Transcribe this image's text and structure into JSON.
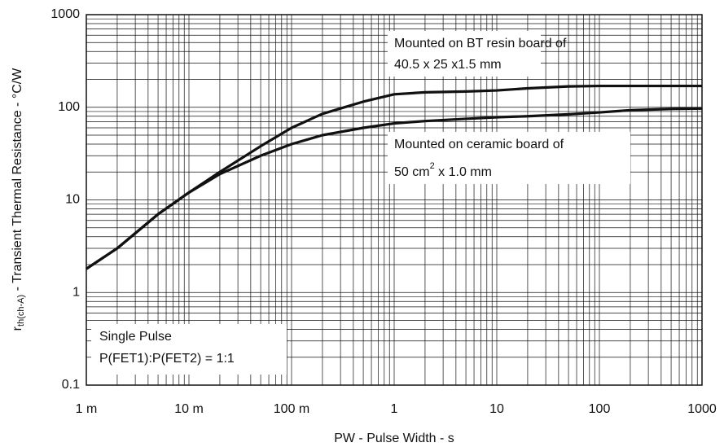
{
  "chart_data": {
    "type": "line",
    "xscale": "log",
    "yscale": "log",
    "grid": true,
    "x_label": "PW - Pulse Width - s",
    "y_label": [
      "r",
      "th(ch-A)",
      " - Transient Thermal Resistance - °C/W"
    ],
    "annotations": [
      "Mounted on BT resin board of",
      "40.5 x 25 x1.5 mm",
      "Mounted on ceramic board of",
      "50 cm",
      "2",
      " x 1.0 mm",
      "Single Pulse",
      "P(FET1):P(FET2) = 1:1"
    ],
    "x": [
      0.001,
      0.002,
      0.005,
      0.01,
      0.02,
      0.05,
      0.1,
      0.2,
      0.5,
      1,
      2,
      5,
      10,
      20,
      50,
      100,
      200,
      500,
      1000
    ],
    "series": [
      {
        "color": "#111111",
        "values": [
          1.8,
          3,
          7,
          12,
          20,
          38,
          60,
          85,
          115,
          138,
          145,
          148,
          152,
          160,
          168,
          170,
          170,
          170,
          170
        ]
      },
      {
        "color": "#111111",
        "values": [
          1.8,
          3,
          7,
          12,
          19,
          30,
          40,
          50,
          60,
          67,
          71,
          75,
          78,
          80,
          84,
          88,
          93,
          96,
          97
        ]
      }
    ],
    "xlim": [
      0.001,
      1000
    ],
    "xticks": [
      {
        "value": 0.001,
        "label": "1 m"
      },
      {
        "value": 0.01,
        "label": "10 m"
      },
      {
        "value": 0.1,
        "label": "100 m"
      },
      1,
      10,
      100,
      1000
    ],
    "ylim": [
      0.1,
      1000
    ],
    "yticks": [
      0.1,
      1,
      10,
      100,
      1000
    ]
  }
}
